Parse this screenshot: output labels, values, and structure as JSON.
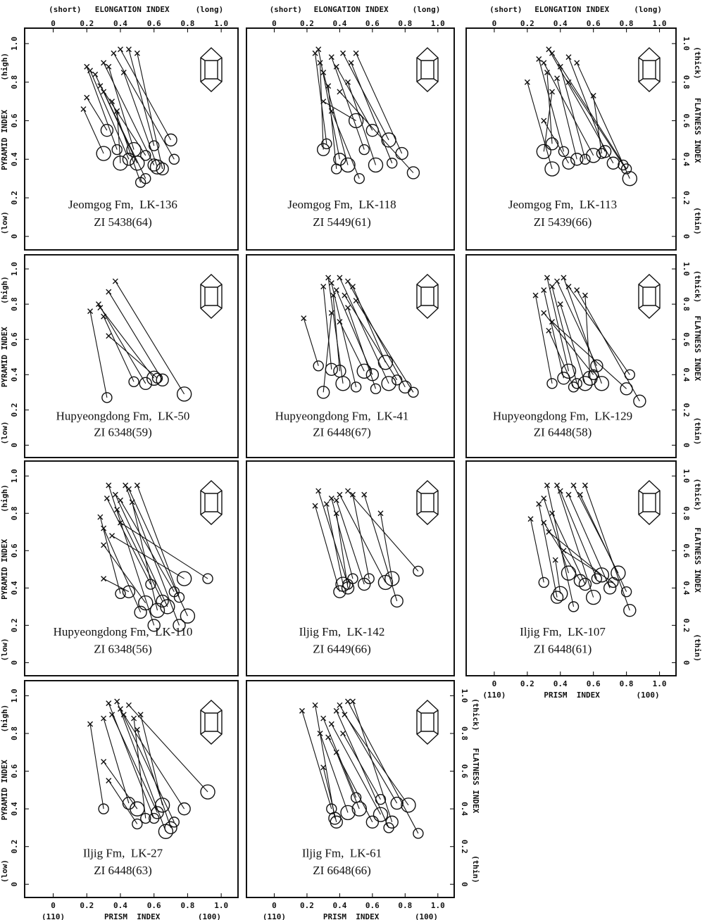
{
  "chart_data": [
    {
      "type": "scatter",
      "title": "Jeomgog Fm,  LK-136",
      "subtitle": "ZI 5438(64)",
      "xlim": [
        -0.17,
        1.1
      ],
      "ylim": [
        -0.07,
        1.08
      ],
      "x2ticks": [
        0,
        0.2,
        0.4,
        0.6,
        0.8,
        {
          "value": 1,
          "label": "1.0"
        }
      ],
      "x2label": {
        "low": "(short)",
        "name": "ELONGATION INDEX",
        "high": "(long)"
      },
      "yticks": [
        0,
        0.2,
        0.4,
        0.6,
        0.8,
        {
          "value": 1,
          "label": "1.0"
        }
      ],
      "ylabel": {
        "high": "(high)",
        "name": "PYRAMID INDEX",
        "low": "(low)"
      },
      "start_x": [
        0.2,
        0.22,
        0.25,
        0.28,
        0.3,
        0.33,
        0.36,
        0.4,
        0.42,
        0.45,
        0.2,
        0.18,
        0.35,
        0.5,
        0.38,
        0.3
      ],
      "start_y": [
        0.88,
        0.86,
        0.84,
        0.78,
        0.9,
        0.88,
        0.95,
        0.97,
        0.85,
        0.97,
        0.72,
        0.66,
        0.7,
        0.95,
        0.65,
        0.75
      ],
      "end_x": [
        0.38,
        0.45,
        0.5,
        0.55,
        0.6,
        0.48,
        0.72,
        0.7,
        0.62,
        0.6,
        0.32,
        0.3,
        0.52,
        0.65,
        0.4,
        0.55
      ],
      "end_y": [
        0.45,
        0.4,
        0.38,
        0.42,
        0.37,
        0.45,
        0.4,
        0.5,
        0.36,
        0.47,
        0.55,
        0.43,
        0.28,
        0.35,
        0.38,
        0.3
      ]
    },
    {
      "type": "scatter",
      "title": "Jeomgog Fm,  LK-118",
      "subtitle": "ZI 5449(61)",
      "xlim": [
        -0.17,
        1.1
      ],
      "ylim": [
        -0.07,
        1.08
      ],
      "x2ticks": [
        0,
        0.2,
        0.4,
        0.6,
        0.8,
        {
          "value": 1,
          "label": "1.0"
        }
      ],
      "x2label": {
        "low": "(short)",
        "name": "ELONGATION INDEX",
        "high": "(long)"
      },
      "start_x": [
        0.25,
        0.27,
        0.3,
        0.35,
        0.38,
        0.42,
        0.47,
        0.5,
        0.3,
        0.35,
        0.4,
        0.45,
        0.33,
        0.28
      ],
      "start_y": [
        0.95,
        0.97,
        0.85,
        0.93,
        0.88,
        0.95,
        0.9,
        0.95,
        0.7,
        0.65,
        0.75,
        0.8,
        0.78,
        0.9
      ],
      "end_x": [
        0.32,
        0.4,
        0.45,
        0.55,
        0.6,
        0.7,
        0.72,
        0.78,
        0.5,
        0.52,
        0.85,
        0.62,
        0.38,
        0.3
      ],
      "end_y": [
        0.48,
        0.4,
        0.37,
        0.45,
        0.55,
        0.5,
        0.38,
        0.43,
        0.6,
        0.3,
        0.33,
        0.37,
        0.35,
        0.45
      ]
    },
    {
      "type": "scatter",
      "title": "Jeomgog Fm,  LK-113",
      "subtitle": "ZI 5439(66)",
      "xlim": [
        -0.17,
        1.1
      ],
      "ylim": [
        -0.07,
        1.08
      ],
      "x2ticks": [
        0,
        0.2,
        0.4,
        0.6,
        0.8,
        {
          "value": 1,
          "label": "1.0"
        }
      ],
      "x2label": {
        "low": "(short)",
        "name": "ELONGATION INDEX",
        "high": "(long)"
      },
      "y2ticks": [
        0,
        0.2,
        0.4,
        0.6,
        0.8,
        {
          "value": 1,
          "label": "1.0"
        }
      ],
      "y2label": {
        "high": "(thick)",
        "name": "FLATNESS INDEX",
        "low": "(thin)"
      },
      "start_x": [
        0.35,
        0.33,
        0.3,
        0.27,
        0.32,
        0.2,
        0.4,
        0.45,
        0.5,
        0.6,
        0.38,
        0.35,
        0.45,
        0.3
      ],
      "start_y": [
        0.95,
        0.97,
        0.9,
        0.92,
        0.85,
        0.8,
        0.88,
        0.93,
        0.9,
        0.73,
        0.82,
        0.75,
        0.8,
        0.6
      ],
      "end_x": [
        0.8,
        0.72,
        0.6,
        0.42,
        0.35,
        0.35,
        0.55,
        0.67,
        0.82,
        0.65,
        0.5,
        0.3,
        0.78,
        0.45
      ],
      "end_y": [
        0.35,
        0.38,
        0.42,
        0.44,
        0.48,
        0.35,
        0.4,
        0.44,
        0.3,
        0.43,
        0.4,
        0.44,
        0.37,
        0.38
      ]
    },
    {
      "type": "scatter",
      "title": "Hupyeongdong Fm,  LK-50",
      "subtitle": "ZI 6348(59)",
      "xlim": [
        -0.17,
        1.1
      ],
      "ylim": [
        -0.07,
        1.08
      ],
      "yticks": [
        0,
        0.2,
        0.4,
        0.6,
        0.8,
        {
          "value": 1,
          "label": "1.0"
        }
      ],
      "ylabel": {
        "high": "(high)",
        "name": "PYRAMID INDEX",
        "low": "(low)"
      },
      "start_x": [
        0.22,
        0.27,
        0.28,
        0.3,
        0.33,
        0.37,
        0.33
      ],
      "start_y": [
        0.76,
        0.8,
        0.78,
        0.73,
        0.87,
        0.93,
        0.62
      ],
      "end_x": [
        0.32,
        0.55,
        0.6,
        0.48,
        0.65,
        0.78,
        0.62
      ],
      "end_y": [
        0.27,
        0.35,
        0.38,
        0.36,
        0.37,
        0.29,
        0.38
      ]
    },
    {
      "type": "scatter",
      "title": "Hupyeongdong Fm,  LK-41",
      "subtitle": "ZI 6448(67)",
      "xlim": [
        -0.17,
        1.1
      ],
      "ylim": [
        -0.07,
        1.08
      ],
      "start_x": [
        0.18,
        0.3,
        0.33,
        0.35,
        0.38,
        0.4,
        0.43,
        0.45,
        0.48,
        0.5,
        0.35,
        0.4,
        0.45,
        0.36
      ],
      "start_y": [
        0.72,
        0.9,
        0.95,
        0.92,
        0.88,
        0.95,
        0.85,
        0.93,
        0.9,
        0.82,
        0.75,
        0.7,
        0.78,
        0.85
      ],
      "end_x": [
        0.27,
        0.35,
        0.42,
        0.5,
        0.6,
        0.7,
        0.75,
        0.8,
        0.68,
        0.85,
        0.3,
        0.55,
        0.62,
        0.4
      ],
      "end_y": [
        0.45,
        0.43,
        0.35,
        0.33,
        0.4,
        0.35,
        0.37,
        0.33,
        0.47,
        0.3,
        0.3,
        0.42,
        0.32,
        0.42
      ]
    },
    {
      "type": "scatter",
      "title": "Hupyeongdong Fm,  LK-129",
      "subtitle": "ZI 6448(58)",
      "xlim": [
        -0.17,
        1.1
      ],
      "ylim": [
        -0.07,
        1.08
      ],
      "y2ticks": [
        0,
        0.2,
        0.4,
        0.6,
        0.8,
        {
          "value": 1,
          "label": "1.0"
        }
      ],
      "y2label": {
        "high": "(thick)",
        "name": "FLATNESS INDEX",
        "low": "(thin)"
      },
      "start_x": [
        0.25,
        0.3,
        0.32,
        0.35,
        0.38,
        0.42,
        0.45,
        0.5,
        0.55,
        0.3,
        0.35,
        0.4,
        0.33
      ],
      "start_y": [
        0.85,
        0.88,
        0.95,
        0.9,
        0.93,
        0.95,
        0.9,
        0.88,
        0.85,
        0.75,
        0.7,
        0.8,
        0.65
      ],
      "end_x": [
        0.35,
        0.42,
        0.45,
        0.5,
        0.62,
        0.65,
        0.82,
        0.88,
        0.58,
        0.6,
        0.8,
        0.55,
        0.48
      ],
      "end_y": [
        0.35,
        0.38,
        0.42,
        0.35,
        0.45,
        0.35,
        0.4,
        0.25,
        0.38,
        0.4,
        0.32,
        0.35,
        0.33
      ]
    },
    {
      "type": "scatter",
      "title": "Hupyeongdong Fm,  LK-110",
      "subtitle": "ZI 6348(56)",
      "xlim": [
        -0.17,
        1.1
      ],
      "ylim": [
        -0.07,
        1.08
      ],
      "yticks": [
        0,
        0.2,
        0.4,
        0.6,
        0.8,
        {
          "value": 1,
          "label": "1.0"
        }
      ],
      "ylabel": {
        "high": "(high)",
        "name": "PYRAMID INDEX",
        "low": "(low)"
      },
      "start_x": [
        0.28,
        0.3,
        0.3,
        0.32,
        0.33,
        0.37,
        0.4,
        0.43,
        0.45,
        0.5,
        0.3,
        0.35,
        0.4,
        0.38,
        0.47
      ],
      "start_y": [
        0.78,
        0.72,
        0.63,
        0.88,
        0.95,
        0.9,
        0.87,
        0.95,
        0.93,
        0.95,
        0.45,
        0.68,
        0.75,
        0.82,
        0.86
      ],
      "end_x": [
        0.4,
        0.52,
        0.55,
        0.58,
        0.6,
        0.68,
        0.72,
        0.75,
        0.8,
        0.75,
        0.45,
        0.78,
        0.92,
        0.65,
        0.62
      ],
      "end_y": [
        0.37,
        0.27,
        0.32,
        0.42,
        0.2,
        0.3,
        0.38,
        0.2,
        0.25,
        0.35,
        0.38,
        0.45,
        0.45,
        0.33,
        0.28
      ]
    },
    {
      "type": "scatter",
      "title": "Iljig Fm,  LK-142",
      "subtitle": "ZI 6449(66)",
      "xlim": [
        -0.17,
        1.1
      ],
      "ylim": [
        -0.07,
        1.08
      ],
      "start_x": [
        0.27,
        0.25,
        0.32,
        0.35,
        0.38,
        0.4,
        0.48,
        0.55,
        0.65,
        0.45,
        0.38
      ],
      "start_y": [
        0.92,
        0.84,
        0.85,
        0.88,
        0.87,
        0.9,
        0.9,
        0.9,
        0.8,
        0.92,
        0.8
      ],
      "end_x": [
        0.45,
        0.4,
        0.42,
        0.48,
        0.55,
        0.68,
        0.58,
        0.75,
        0.72,
        0.88,
        0.45
      ],
      "end_y": [
        0.42,
        0.38,
        0.42,
        0.45,
        0.42,
        0.43,
        0.45,
        0.33,
        0.45,
        0.49,
        0.4
      ]
    },
    {
      "type": "scatter",
      "title": "Iljig Fm,  LK-107",
      "subtitle": "ZI 6448(61)",
      "xlim": [
        -0.17,
        1.1
      ],
      "ylim": [
        -0.07,
        1.08
      ],
      "y2ticks": [
        0,
        0.2,
        0.4,
        0.6,
        0.8,
        {
          "value": 1,
          "label": "1.0"
        }
      ],
      "y2label": {
        "high": "(thick)",
        "name": "FLATNESS INDEX",
        "low": "(thin)"
      },
      "xticks": [
        0,
        0.2,
        0.4,
        0.6,
        0.8,
        {
          "value": 1,
          "label": "1.0"
        }
      ],
      "xlabel": {
        "low": "(110)",
        "name": "PRISM  INDEX",
        "high": "(100)"
      },
      "start_x": [
        0.22,
        0.27,
        0.3,
        0.32,
        0.35,
        0.38,
        0.4,
        0.45,
        0.48,
        0.52,
        0.55,
        0.33,
        0.42,
        0.3,
        0.37
      ],
      "start_y": [
        0.77,
        0.85,
        0.88,
        0.95,
        0.8,
        0.95,
        0.92,
        0.9,
        0.95,
        0.9,
        0.95,
        0.7,
        0.6,
        0.75,
        0.55
      ],
      "end_x": [
        0.3,
        0.38,
        0.45,
        0.48,
        0.55,
        0.6,
        0.62,
        0.7,
        0.75,
        0.8,
        0.82,
        0.65,
        0.72,
        0.52,
        0.4
      ],
      "end_y": [
        0.43,
        0.35,
        0.48,
        0.3,
        0.42,
        0.35,
        0.45,
        0.4,
        0.48,
        0.38,
        0.28,
        0.47,
        0.43,
        0.44,
        0.37
      ]
    },
    {
      "type": "scatter",
      "title": "Iljig Fm,  LK-27",
      "subtitle": "ZI 6448(63)",
      "xlim": [
        -0.17,
        1.1
      ],
      "ylim": [
        -0.07,
        1.08
      ],
      "yticks": [
        0,
        0.2,
        0.4,
        0.6,
        0.8,
        {
          "value": 1,
          "label": "1.0"
        }
      ],
      "ylabel": {
        "high": "(high)",
        "name": "PYRAMID INDEX",
        "low": "(low)"
      },
      "xticks": [
        0,
        0.2,
        0.4,
        0.6,
        0.8,
        {
          "value": 1,
          "label": "1.0"
        }
      ],
      "xlabel": {
        "low": "(110)",
        "name": "PRISM  INDEX",
        "high": "(100)"
      },
      "start_x": [
        0.22,
        0.3,
        0.3,
        0.33,
        0.35,
        0.38,
        0.4,
        0.42,
        0.45,
        0.48,
        0.5,
        0.52,
        0.33
      ],
      "start_y": [
        0.85,
        0.88,
        0.65,
        0.96,
        0.9,
        0.97,
        0.93,
        0.9,
        0.95,
        0.88,
        0.82,
        0.9,
        0.55
      ],
      "end_x": [
        0.3,
        0.45,
        0.5,
        0.6,
        0.62,
        0.67,
        0.72,
        0.78,
        0.92,
        0.55,
        0.7,
        0.65,
        0.5
      ],
      "end_y": [
        0.4,
        0.43,
        0.4,
        0.35,
        0.38,
        0.28,
        0.33,
        0.4,
        0.49,
        0.35,
        0.3,
        0.42,
        0.32
      ]
    },
    {
      "type": "scatter",
      "title": "Iljig Fm,  LK-61",
      "subtitle": "ZI 6648(66)",
      "xlim": [
        -0.17,
        1.1
      ],
      "ylim": [
        -0.07,
        1.08
      ],
      "y2ticks": [
        0,
        0.2,
        0.4,
        0.6,
        0.8,
        {
          "value": 1,
          "label": "1.0"
        }
      ],
      "y2label": {
        "high": "(thick)",
        "name": "FLATNESS INDEX",
        "low": "(thin)"
      },
      "xticks": [
        0,
        0.2,
        0.4,
        0.6,
        0.8,
        {
          "value": 1,
          "label": "1.0"
        }
      ],
      "xlabel": {
        "low": "(110)",
        "name": "PRISM  INDEX",
        "high": "(100)"
      },
      "start_x": [
        0.17,
        0.25,
        0.28,
        0.3,
        0.33,
        0.35,
        0.38,
        0.4,
        0.43,
        0.45,
        0.48,
        0.38,
        0.42,
        0.3
      ],
      "start_y": [
        0.92,
        0.95,
        0.8,
        0.88,
        0.78,
        0.85,
        0.92,
        0.95,
        0.9,
        0.97,
        0.97,
        0.7,
        0.8,
        0.62
      ],
      "end_x": [
        0.35,
        0.37,
        0.45,
        0.5,
        0.6,
        0.65,
        0.7,
        0.75,
        0.82,
        0.88,
        0.72,
        0.52,
        0.65,
        0.38
      ],
      "end_y": [
        0.4,
        0.35,
        0.38,
        0.46,
        0.33,
        0.37,
        0.3,
        0.43,
        0.42,
        0.27,
        0.33,
        0.4,
        0.45,
        0.33
      ]
    }
  ]
}
